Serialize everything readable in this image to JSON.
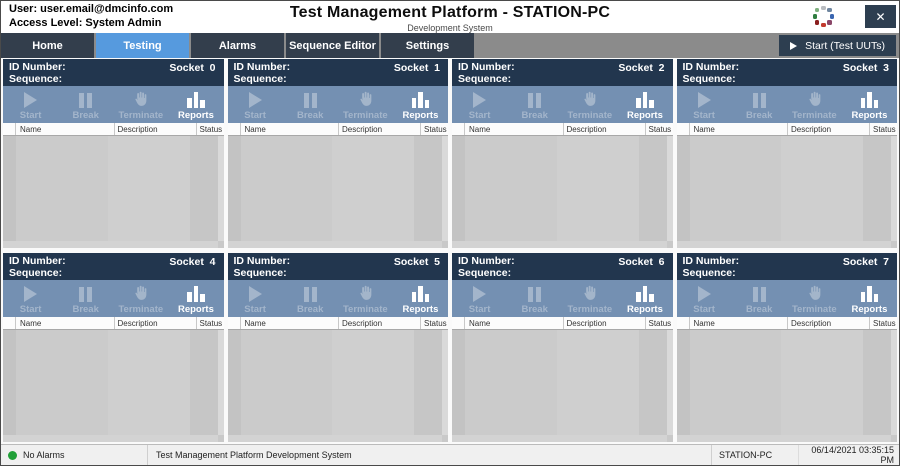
{
  "titlebar": {
    "user_line": "User: user.email@dmcinfo.com",
    "access_line": "Access Level: System Admin",
    "title": "Test Management Platform - STATION-PC",
    "subtitle": "Development System",
    "close_glyph": "✕",
    "logo_dot_colors": [
      "#b9bcc0",
      "#6f86a0",
      "#3a66b0",
      "#8a4668",
      "#c23a2e",
      "#8a1f1f",
      "#2f7d3f",
      "#7fb07f"
    ]
  },
  "nav": {
    "tabs": [
      {
        "label": "Home",
        "active": false
      },
      {
        "label": "Testing",
        "active": true
      },
      {
        "label": "Alarms",
        "active": false
      },
      {
        "label": "Sequence Editor",
        "active": false
      },
      {
        "label": "Settings",
        "active": false
      }
    ],
    "start_button_label": "Start (Test UUTs)",
    "start_button_icon": "play-icon"
  },
  "sockets": {
    "id_label": "ID Number:",
    "sequence_label": "Sequence:",
    "buttons": [
      {
        "label": "Start",
        "icon": "play-icon",
        "enabled": false
      },
      {
        "label": "Break",
        "icon": "pause-icon",
        "enabled": false
      },
      {
        "label": "Terminate",
        "icon": "hand-icon",
        "enabled": false
      },
      {
        "label": "Reports",
        "icon": "bar-chart-icon",
        "enabled": true
      }
    ],
    "columns": [
      "Name",
      "Description",
      "Status"
    ],
    "panels": [
      {
        "socket_label": "Socket  0"
      },
      {
        "socket_label": "Socket  1"
      },
      {
        "socket_label": "Socket  2"
      },
      {
        "socket_label": "Socket  3"
      },
      {
        "socket_label": "Socket  4"
      },
      {
        "socket_label": "Socket  5"
      },
      {
        "socket_label": "Socket  6"
      },
      {
        "socket_label": "Socket  7"
      }
    ]
  },
  "statusbar": {
    "alarm_text": "No Alarms",
    "alarm_color": "#21a038",
    "app_text": "Test Management Platform Development System",
    "station": "STATION-PC",
    "datetime": "06/14/2021 03:35:15 PM"
  },
  "colors": {
    "active_tab_blue": "#569ade",
    "inactive_tab": "#333e4c",
    "panel_header_navy": "#22364e",
    "toolbar_blue": "#7490b2",
    "disabled_icon": "#a3b5cb",
    "dark_button_navy": "#2d3e50",
    "nav_strip_gray": "#8b8b8b"
  }
}
